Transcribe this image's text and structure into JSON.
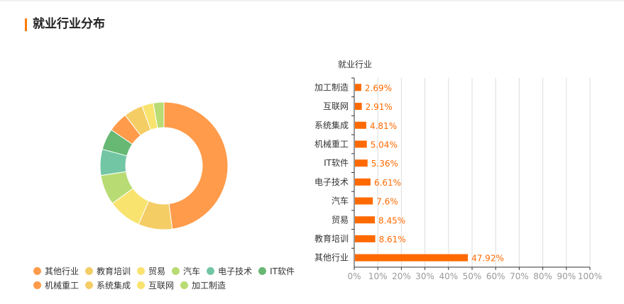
{
  "header": {
    "title": "就业行业分布"
  },
  "chart_data": [
    {
      "type": "pie",
      "donut": true,
      "slices": [
        {
          "label": "其他行业",
          "value": 47.92,
          "color": "#ff9b4a"
        },
        {
          "label": "教育培训",
          "value": 8.61,
          "color": "#f4cd65"
        },
        {
          "label": "贸易",
          "value": 8.45,
          "color": "#f9e36f"
        },
        {
          "label": "汽车",
          "value": 7.6,
          "color": "#b8dc73"
        },
        {
          "label": "电子技术",
          "value": 6.61,
          "color": "#72c6a4"
        },
        {
          "label": "IT软件",
          "value": 5.36,
          "color": "#66b873"
        },
        {
          "label": "机械重工",
          "value": 5.04,
          "color": "#ff9b4a"
        },
        {
          "label": "系统集成",
          "value": 4.81,
          "color": "#f4cd65"
        },
        {
          "label": "互联网",
          "value": 2.91,
          "color": "#f9e36f"
        },
        {
          "label": "加工制造",
          "value": 2.69,
          "color": "#b8dc73"
        }
      ],
      "legend": {
        "placement": "bottom",
        "rows": [
          [
            "其他行业",
            "教育培训",
            "贸易",
            "汽车",
            "电子技术",
            "IT软件"
          ],
          [
            "机械重工",
            "系统集成",
            "互联网",
            "加工制造"
          ]
        ]
      }
    },
    {
      "type": "bar",
      "orientation": "horizontal",
      "ylabel": "就业行业",
      "categories": [
        "加工制造",
        "互联网",
        "系统集成",
        "机械重工",
        "IT软件",
        "电子技术",
        "汽车",
        "贸易",
        "教育培训",
        "其他行业"
      ],
      "values": [
        2.69,
        2.91,
        4.81,
        5.04,
        5.36,
        6.61,
        7.6,
        8.45,
        8.61,
        47.92
      ],
      "value_labels": [
        "2.69%",
        "2.91%",
        "4.81%",
        "5.04%",
        "5.36%",
        "6.61%",
        "7.6%",
        "8.45%",
        "8.61%",
        "47.92%"
      ],
      "xlim": [
        0,
        100
      ],
      "xticks": [
        "0%",
        "10%",
        "20%",
        "30%",
        "40%",
        "50%",
        "60%",
        "70%",
        "80%",
        "90%",
        "100%"
      ],
      "bar_color": "#ff6a00",
      "label_color": "#ff6a00",
      "grid": true
    }
  ]
}
